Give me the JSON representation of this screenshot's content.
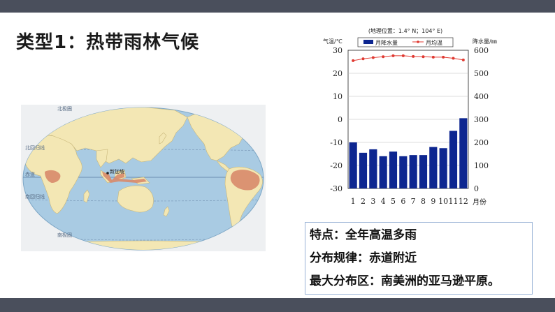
{
  "slide": {
    "title": "类型1：热带雨林气候"
  },
  "map": {
    "labels": {
      "arctic_circle": "北极圈",
      "tropic_cancer": "北回归线",
      "equator": "赤道",
      "tropic_capricorn": "南回归线",
      "antarctic_circle": "南极圈",
      "singapore": "新加坡"
    },
    "colors": {
      "ocean": "#a9cbe3",
      "land": "#f3e7b4",
      "rainforest": "#d88a6a"
    }
  },
  "chart_data": {
    "type": "bar+line",
    "title": "(地理位置：1.4° N；104° E)",
    "left_axis_label": "气温/℃",
    "right_axis_label": "降水量/㎜",
    "x_axis_label": "月份",
    "categories": [
      "1",
      "2",
      "3",
      "4",
      "5",
      "6",
      "7",
      "8",
      "9",
      "10",
      "11",
      "12"
    ],
    "left_ylim": [
      -30,
      30
    ],
    "left_ticks": [
      "30",
      "20",
      "10",
      "0",
      "-10",
      "-20",
      "-30"
    ],
    "right_ylim": [
      0,
      600
    ],
    "right_ticks": [
      "600",
      "500",
      "400",
      "300",
      "200",
      "100",
      "0"
    ],
    "legend": [
      "月降水量",
      "月均温"
    ],
    "series": [
      {
        "name": "月降水量",
        "axis": "right",
        "type": "bar",
        "color": "#0d2690",
        "values": [
          200,
          155,
          170,
          140,
          160,
          140,
          145,
          145,
          180,
          175,
          250,
          305
        ]
      },
      {
        "name": "月均温",
        "axis": "left",
        "type": "line",
        "color": "#e03a32",
        "values": [
          25.5,
          26.3,
          26.8,
          27.2,
          27.6,
          27.6,
          27.3,
          27.2,
          27.0,
          27.0,
          26.5,
          25.8
        ]
      }
    ]
  },
  "info": {
    "lines": [
      "特点：全年高温多雨",
      "分布规律：赤道附近",
      "最大分布区：南美洲的亚马逊平原。"
    ]
  }
}
